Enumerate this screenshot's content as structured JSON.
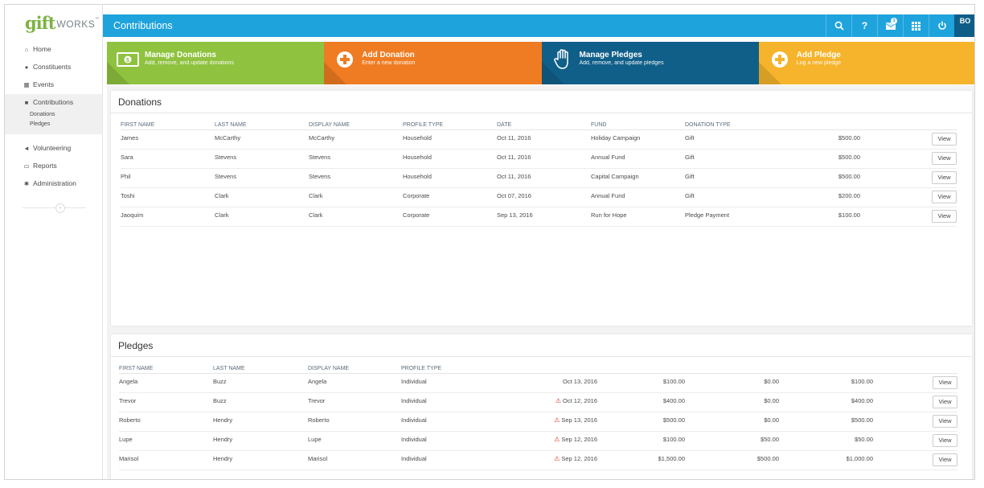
{
  "logo": {
    "gift": "gift",
    "works": "WORKS",
    "tm": "™"
  },
  "sidebar": {
    "items": [
      {
        "label": "Home",
        "icon": "home-icon"
      },
      {
        "label": "Constituents",
        "icon": "users-icon"
      },
      {
        "label": "Events",
        "icon": "calendar-icon"
      },
      {
        "label": "Contributions",
        "icon": "gift-icon"
      },
      {
        "label": "Volunteering",
        "icon": "megaphone-icon"
      },
      {
        "label": "Reports",
        "icon": "folder-icon"
      },
      {
        "label": "Administration",
        "icon": "gears-icon"
      }
    ],
    "subitems": [
      "Donations",
      "Pledges"
    ],
    "collapse": "‹"
  },
  "header": {
    "title": "Contributions",
    "badge": "3",
    "avatar": "BO",
    "help": "?"
  },
  "tiles": [
    {
      "title": "Manage Donations",
      "sub": "Add, remove, and update donations",
      "icon": "money-icon",
      "color": "#8fc23f"
    },
    {
      "title": "Add Donation",
      "sub": "Enter a new donation",
      "icon": "plus-circle-icon",
      "color": "#ef7c22"
    },
    {
      "title": "Manage Pledges",
      "sub": "Add, remove, and update pledges",
      "icon": "hand-icon",
      "color": "#105f89"
    },
    {
      "title": "Add Pledge",
      "sub": "Log a new pledge",
      "icon": "plus-circle-icon",
      "color": "#f5b42c"
    }
  ],
  "donations": {
    "title": "Donations",
    "columns": [
      "FIRST NAME",
      "LAST NAME",
      "DISPLAY NAME",
      "PROFILE TYPE",
      "DATE",
      "FUND",
      "DONATION TYPE"
    ],
    "rows": [
      {
        "first": "James",
        "last": "McCarthy",
        "display": "McCarthy",
        "profile": "Household",
        "date": "Oct 11, 2016",
        "fund": "Holiday Campaign",
        "type": "Gift",
        "amount": "$500.00"
      },
      {
        "first": "Sara",
        "last": "Stevens",
        "display": "Stevens",
        "profile": "Household",
        "date": "Oct 11, 2016",
        "fund": "Annual Fund",
        "type": "Gift",
        "amount": "$500.00"
      },
      {
        "first": "Phil",
        "last": "Stevens",
        "display": "Stevens",
        "profile": "Household",
        "date": "Oct 11, 2016",
        "fund": "Capital Campaign",
        "type": "Gift",
        "amount": "$500.00"
      },
      {
        "first": "Toshi",
        "last": "Clark",
        "display": "Clark",
        "profile": "Corporate",
        "date": "Oct 07, 2016",
        "fund": "Annual Fund",
        "type": "Gift",
        "amount": "$200.00"
      },
      {
        "first": "Jaoquim",
        "last": "Clark",
        "display": "Clark",
        "profile": "Corporate",
        "date": "Sep 13, 2016",
        "fund": "Run for Hope",
        "type": "Pledge Payment",
        "amount": "$100.00"
      }
    ],
    "view_label": "View"
  },
  "pledges": {
    "title": "Pledges",
    "columns": [
      "FIRST NAME",
      "LAST NAME",
      "DISPLAY NAME",
      "PROFILE TYPE"
    ],
    "rows": [
      {
        "first": "Angela",
        "last": "Buzz",
        "display": "Angela",
        "profile": "Individual",
        "warn": false,
        "date": "Oct 13, 2016",
        "pledged": "$100.00",
        "paid": "$0.00",
        "balance": "$100.00"
      },
      {
        "first": "Trevor",
        "last": "Buzz",
        "display": "Trevor",
        "profile": "Individual",
        "warn": true,
        "date": "Oct 12, 2016",
        "pledged": "$400.00",
        "paid": "$0.00",
        "balance": "$400.00"
      },
      {
        "first": "Roberto",
        "last": "Hendry",
        "display": "Roberto",
        "profile": "Individual",
        "warn": true,
        "date": "Sep 13, 2016",
        "pledged": "$500.00",
        "paid": "$0.00",
        "balance": "$500.00"
      },
      {
        "first": "Lupe",
        "last": "Hendry",
        "display": "Lupe",
        "profile": "Individual",
        "warn": true,
        "date": "Sep 12, 2016",
        "pledged": "$100.00",
        "paid": "$50.00",
        "balance": "$50.00"
      },
      {
        "first": "Marisol",
        "last": "Hendry",
        "display": "Marisol",
        "profile": "Individual",
        "warn": true,
        "date": "Sep 12, 2016",
        "pledged": "$1,500.00",
        "paid": "$500.00",
        "balance": "$1,000.00"
      }
    ],
    "view_label": "View",
    "warn_icon": "⚠"
  }
}
